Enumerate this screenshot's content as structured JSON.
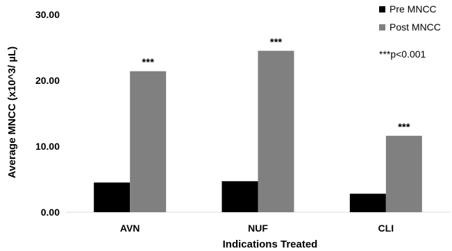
{
  "chart_data": {
    "type": "bar",
    "title": "",
    "xlabel": "Indications Treated",
    "ylabel": "Average MNCC (x10^3/ µL)",
    "categories": [
      "AVN",
      "NUF",
      "CLI"
    ],
    "series": [
      {
        "name": "Pre MNCC",
        "values": [
          4.5,
          4.7,
          2.8
        ],
        "color": "#000000"
      },
      {
        "name": "Post MNCC",
        "values": [
          21.4,
          24.5,
          11.6
        ],
        "color": "#808080"
      }
    ],
    "significance_labels": [
      "***",
      "***",
      "***"
    ],
    "annotation": "***p<0.001",
    "ylim": [
      0,
      30
    ],
    "yticks": [
      "0.00",
      "10.00",
      "20.00",
      "30.00"
    ],
    "grid": false,
    "legend_position": "top-right"
  }
}
